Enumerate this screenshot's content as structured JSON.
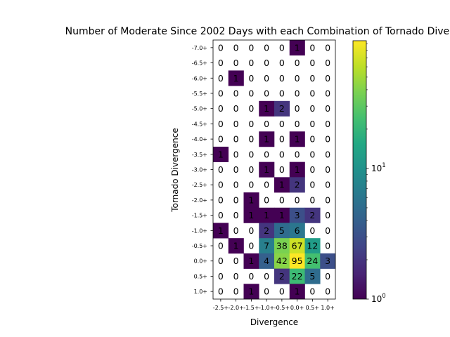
{
  "chart_data": {
    "type": "heatmap",
    "title": "Number of Moderate Since 2002 Days with each Combination of Tornado Divergence",
    "xlabel": "Divergence",
    "ylabel": "Tornado Divergence",
    "x_categories": [
      "-2.5+",
      "-2.0+",
      "-1.5+",
      "-1.0+",
      "-0.5+",
      "0.0+",
      "0.5+",
      "1.0+"
    ],
    "y_categories": [
      "-7.0+",
      "-6.5+",
      "-6.0+",
      "-5.5+",
      "-5.0+",
      "-4.5+",
      "-4.0+",
      "-3.5+",
      "-3.0+",
      "-2.5+",
      "-2.0+",
      "-1.5+",
      "-1.0+",
      "-0.5+",
      "0.0+",
      "0.5+",
      "1.0+"
    ],
    "values": [
      [
        0,
        0,
        0,
        0,
        0,
        1,
        0,
        0
      ],
      [
        0,
        0,
        0,
        0,
        0,
        0,
        0,
        0
      ],
      [
        0,
        1,
        0,
        0,
        0,
        0,
        0,
        0
      ],
      [
        0,
        0,
        0,
        0,
        0,
        0,
        0,
        0
      ],
      [
        0,
        0,
        0,
        1,
        2,
        0,
        0,
        0
      ],
      [
        0,
        0,
        0,
        0,
        0,
        0,
        0,
        0
      ],
      [
        0,
        0,
        0,
        1,
        0,
        1,
        0,
        0
      ],
      [
        1,
        0,
        0,
        0,
        0,
        0,
        0,
        0
      ],
      [
        0,
        0,
        0,
        1,
        0,
        1,
        0,
        0
      ],
      [
        0,
        0,
        0,
        0,
        1,
        2,
        0,
        0
      ],
      [
        0,
        0,
        1,
        0,
        0,
        0,
        0,
        0
      ],
      [
        0,
        0,
        1,
        1,
        1,
        3,
        2,
        0
      ],
      [
        1,
        0,
        0,
        2,
        5,
        6,
        0,
        0
      ],
      [
        0,
        1,
        0,
        7,
        38,
        67,
        12,
        0
      ],
      [
        0,
        0,
        1,
        4,
        42,
        95,
        24,
        3
      ],
      [
        0,
        0,
        0,
        0,
        2,
        22,
        5,
        0
      ],
      [
        0,
        0,
        1,
        0,
        0,
        1,
        0,
        0
      ]
    ],
    "colorscale": "viridis",
    "color_scale_type": "log",
    "color_range": [
      1,
      95
    ],
    "colorbar_ticks": [
      {
        "value": 1,
        "base": "10",
        "exp": "0"
      },
      {
        "value": 10,
        "base": "10",
        "exp": "1"
      }
    ],
    "grid": false
  }
}
